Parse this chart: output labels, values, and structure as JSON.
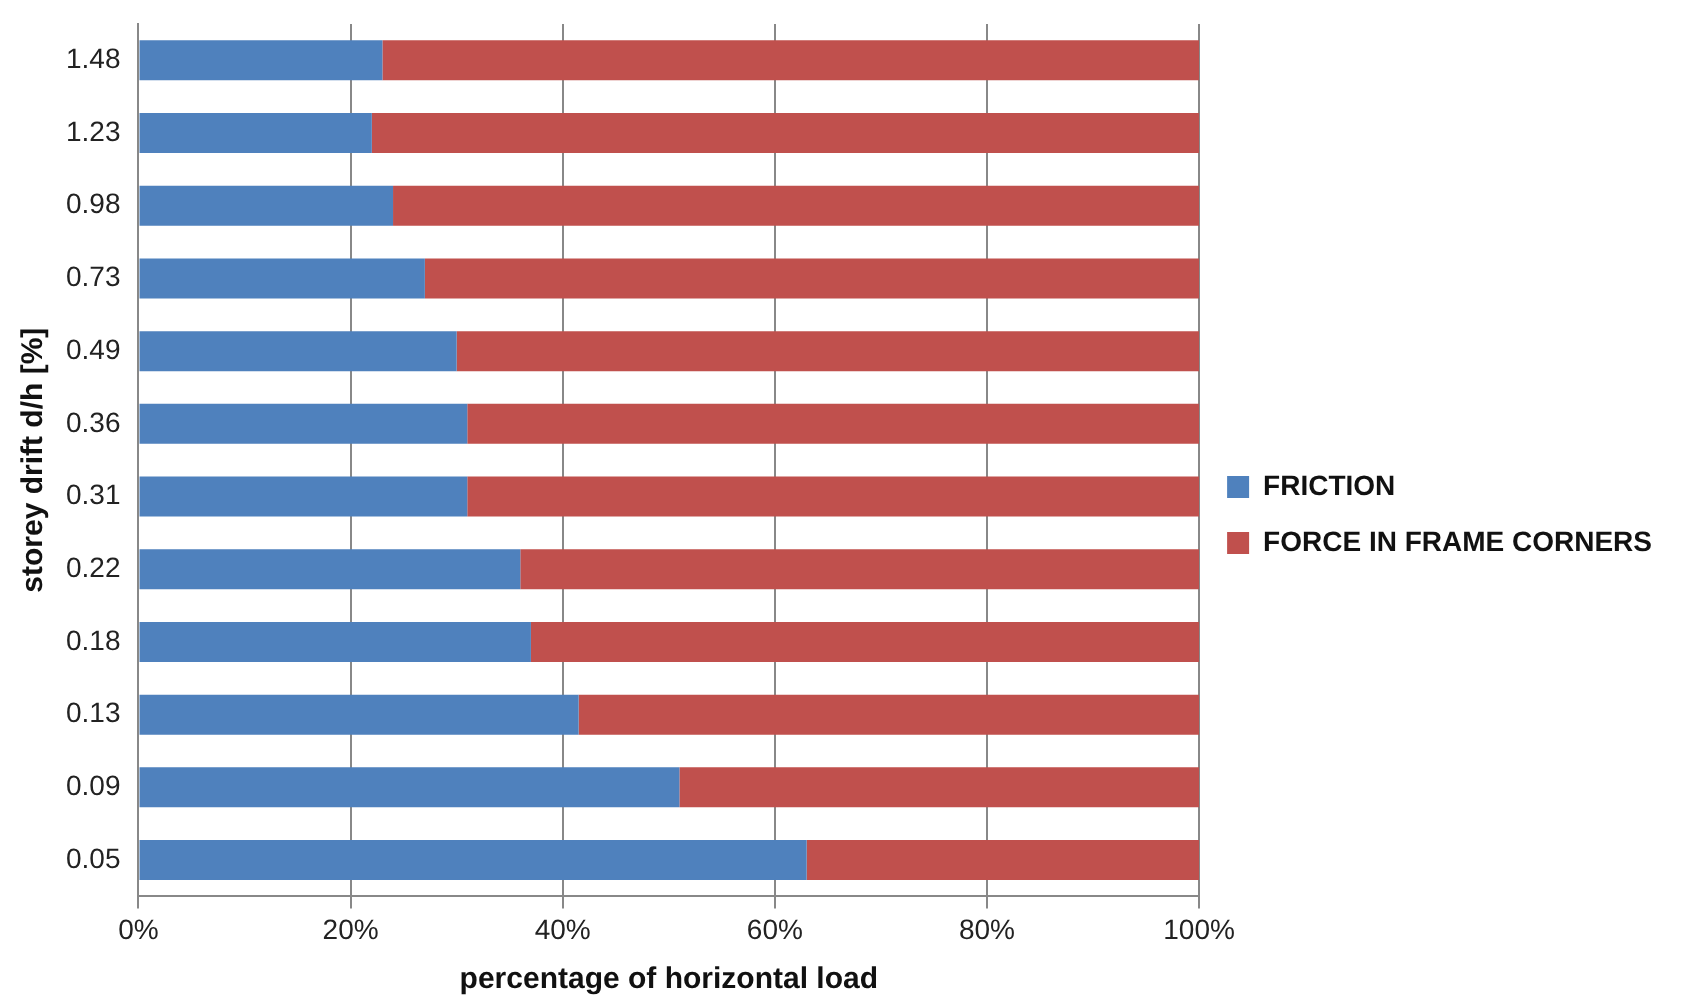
{
  "chart_data": {
    "type": "bar",
    "orientation": "horizontal",
    "stacked": true,
    "xlabel": "percentage of horizontal load",
    "ylabel": "storey drift d/h [%]",
    "categories": [
      "1.48",
      "1.23",
      "0.98",
      "0.73",
      "0.49",
      "0.36",
      "0.31",
      "0.22",
      "0.18",
      "0.13",
      "0.09",
      "0.05"
    ],
    "series": [
      {
        "name": "FRICTION",
        "color": "#4f81bd",
        "values": [
          23,
          22,
          24,
          27,
          30,
          31,
          31,
          36,
          37,
          41.5,
          51,
          63
        ]
      },
      {
        "name": "FORCE IN FRAME CORNERS",
        "color": "#c0504d",
        "values": [
          77,
          78,
          76,
          73,
          70,
          69,
          69,
          64,
          63,
          58.5,
          49,
          37
        ]
      }
    ],
    "xlim": [
      0,
      100
    ],
    "xticks": [
      {
        "value": 0,
        "label": "0%"
      },
      {
        "value": 20,
        "label": "20%"
      },
      {
        "value": 40,
        "label": "40%"
      },
      {
        "value": 60,
        "label": "60%"
      },
      {
        "value": 80,
        "label": "80%"
      },
      {
        "value": 100,
        "label": "100%"
      }
    ],
    "grid": "x",
    "legend": "right"
  }
}
